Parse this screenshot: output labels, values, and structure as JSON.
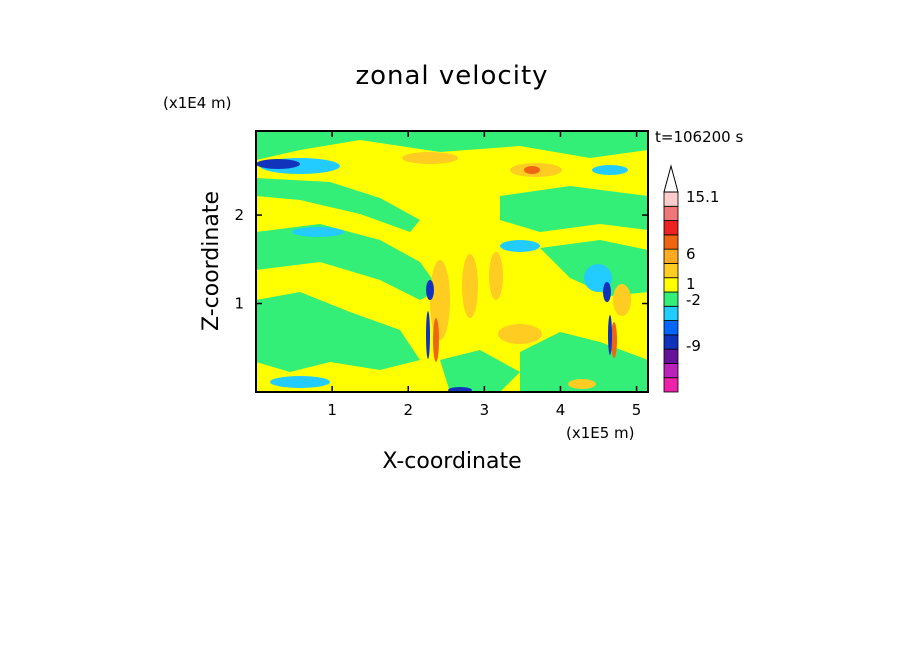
{
  "chart_data": {
    "type": "heatmap",
    "title": "zonal velocity",
    "xlabel": "X-coordinate",
    "ylabel": "Z-coordinate",
    "x_scale_note": "(x1E5 m)",
    "y_scale_note": "(x1E4 m)",
    "time_label": "t=106200 s",
    "xlim": [
      0,
      5.15
    ],
    "ylim": [
      0,
      2.95
    ],
    "x_ticks": [
      1,
      2,
      3,
      4,
      5
    ],
    "y_ticks": [
      1,
      2
    ],
    "colorbar": {
      "labeled_levels": [
        "15.1",
        "6",
        "1",
        "-2",
        "-9"
      ],
      "colors_bottom_to_top": [
        "#ee22aa",
        "#bb22bb",
        "#661199",
        "#1133bb",
        "#0066ff",
        "#22ccff",
        "#33ee77",
        "#ffff00",
        "#ffcc22",
        "#ffaa22",
        "#ee6611",
        "#ee2222",
        "#ee7777",
        "#ffcccc"
      ],
      "extend_top": true
    },
    "field_summary": [
      {
        "feature": "background",
        "value_range": "-2 to 1"
      },
      {
        "feature": "upward fan near x=2.3",
        "value_range": "-9 to 6"
      },
      {
        "feature": "upward plume near x=4.6",
        "value_range": "-9 to 6"
      },
      {
        "feature": "upper-left blue patch near x=0.25, z=2.6",
        "value_range": "below -2"
      }
    ]
  }
}
